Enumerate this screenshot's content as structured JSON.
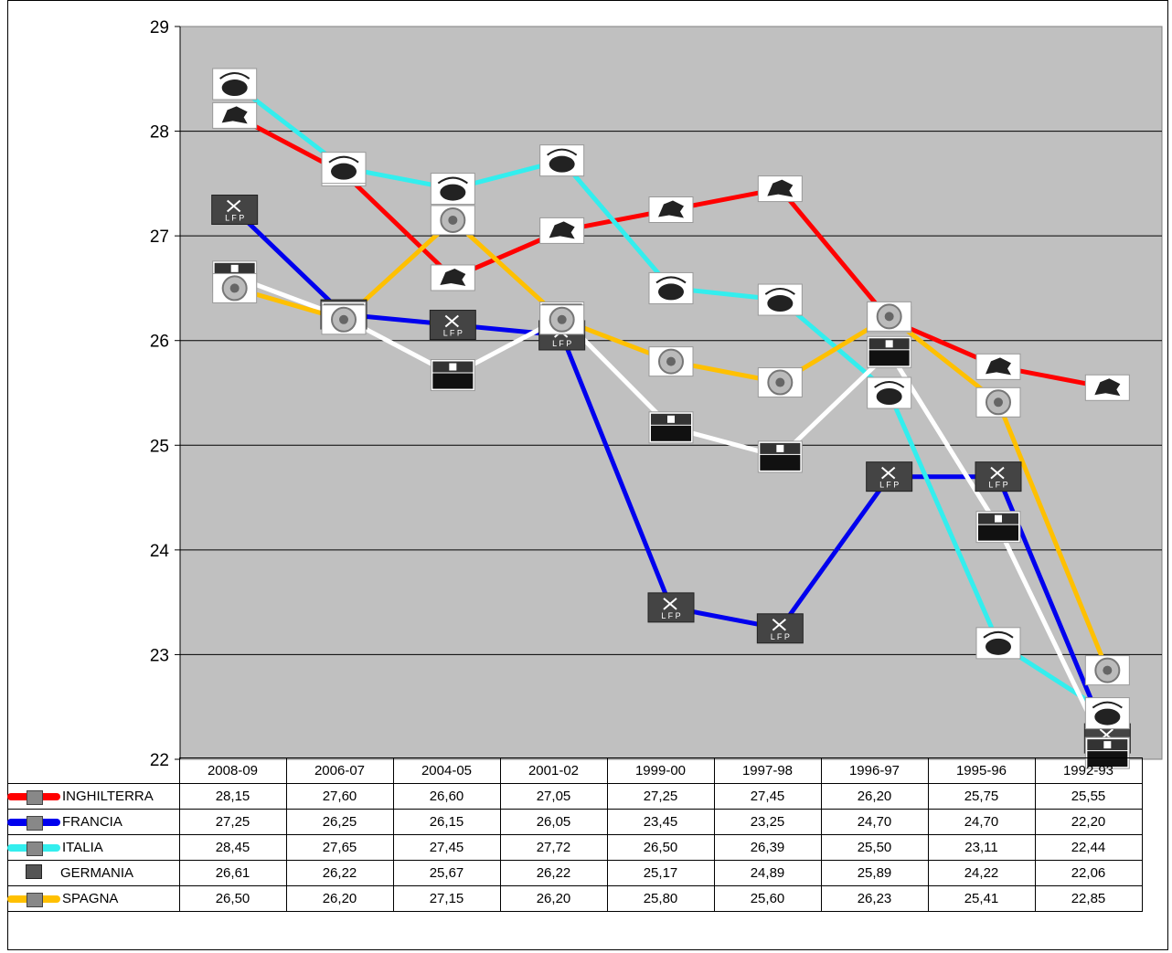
{
  "chart_data": {
    "type": "line",
    "title": "",
    "categories": [
      "2008-09",
      "2006-07",
      "2004-05",
      "2001-02",
      "1999-00",
      "1997-98",
      "1996-97",
      "1995-96",
      "1992-93"
    ],
    "ylim": [
      22,
      29
    ],
    "y_ticks": [
      "22",
      "23",
      "24",
      "25",
      "26",
      "27",
      "28",
      "29"
    ],
    "grid": true,
    "legend": "table-below",
    "series": [
      {
        "name": "INGHILTERRA",
        "color": "#ff0000",
        "icon": "premier-league-logo",
        "values": [
          28.15,
          27.6,
          26.6,
          27.05,
          27.25,
          27.45,
          26.2,
          25.75,
          25.55
        ],
        "labels": [
          "28,15",
          "27,60",
          "26,60",
          "27,05",
          "27,25",
          "27,45",
          "26,20",
          "25,75",
          "25,55"
        ]
      },
      {
        "name": "FRANCIA",
        "color": "#0000ee",
        "icon": "lfp-logo",
        "values": [
          27.25,
          26.25,
          26.15,
          26.05,
          23.45,
          23.25,
          24.7,
          24.7,
          22.2
        ],
        "labels": [
          "27,25",
          "26,25",
          "26,15",
          "26,05",
          "23,45",
          "23,25",
          "24,70",
          "24,70",
          "22,20"
        ]
      },
      {
        "name": "ITALIA",
        "color": "#33eeee",
        "icon": "lega-calcio-logo",
        "values": [
          28.45,
          27.65,
          27.45,
          27.72,
          26.5,
          26.39,
          25.5,
          23.11,
          22.44
        ],
        "labels": [
          "28,45",
          "27,65",
          "27,45",
          "27,72",
          "26,50",
          "26,39",
          "25,50",
          "23,11",
          "22,44"
        ]
      },
      {
        "name": "GERMANIA",
        "color": "#ffffff",
        "icon": "bundesliga-logo",
        "values": [
          26.61,
          26.22,
          25.67,
          26.22,
          25.17,
          24.89,
          25.89,
          24.22,
          22.06
        ],
        "labels": [
          "26,61",
          "26,22",
          "25,67",
          "26,22",
          "25,17",
          "24,89",
          "25,89",
          "24,22",
          "22,06"
        ]
      },
      {
        "name": "SPAGNA",
        "color": "#ffc000",
        "icon": "lfp-spain-logo",
        "values": [
          26.5,
          26.2,
          27.15,
          26.2,
          25.8,
          25.6,
          26.23,
          25.41,
          22.85
        ],
        "labels": [
          "26,50",
          "26,20",
          "27,15",
          "26,20",
          "25,80",
          "25,60",
          "26,23",
          "25,41",
          "22,85"
        ]
      }
    ]
  }
}
